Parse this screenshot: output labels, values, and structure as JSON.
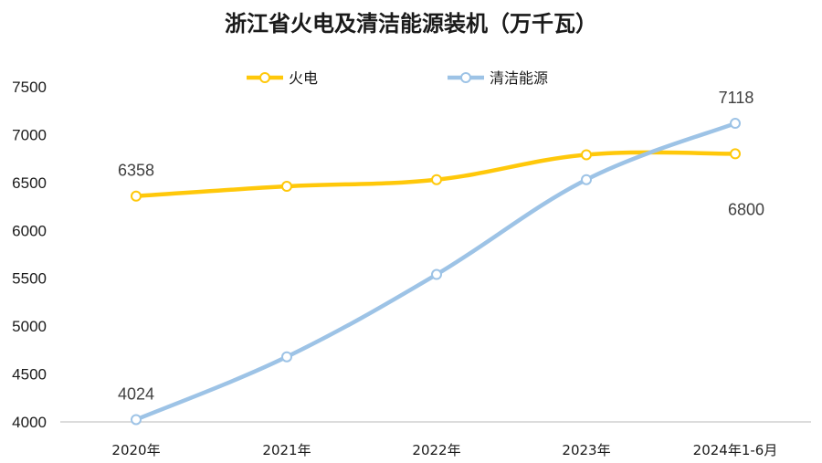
{
  "chart_data": {
    "type": "line",
    "title": "浙江省火电及清洁能源装机（万千瓦）",
    "categories": [
      "2020年",
      "2021年",
      "2022年",
      "2023年",
      "2024年1-6月"
    ],
    "series": [
      {
        "name": "火电",
        "color": "#FFC80A",
        "values": [
          6358,
          6460,
          6530,
          6790,
          6800
        ]
      },
      {
        "name": "清洁能源",
        "color": "#9DC3E6",
        "values": [
          4024,
          4680,
          5540,
          6530,
          7118
        ]
      }
    ],
    "data_labels": [
      {
        "series": 0,
        "index": 0,
        "text": "6358"
      },
      {
        "series": 0,
        "index": 4,
        "text": "6800"
      },
      {
        "series": 1,
        "index": 0,
        "text": "4024"
      },
      {
        "series": 1,
        "index": 4,
        "text": "7118"
      }
    ],
    "yticks": [
      4000,
      4500,
      5000,
      5500,
      6000,
      6500,
      7000,
      7500
    ],
    "ylim": [
      4000,
      7500
    ],
    "legend_position": "top",
    "grid": false
  }
}
